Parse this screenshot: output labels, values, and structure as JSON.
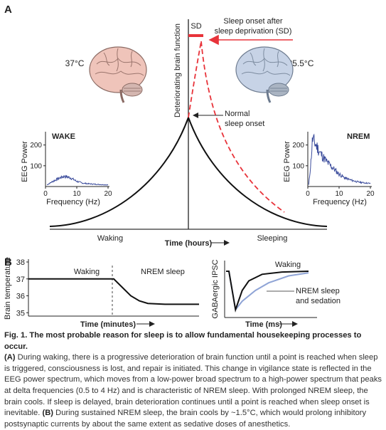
{
  "panel_a": {
    "label": "A",
    "y_axis_label": "Deteriorating brain function",
    "x_axis_label": "Time (hours)",
    "left_label": "Waking",
    "right_label": "Sleeping",
    "sd_tag": "SD",
    "sd_annotation": [
      "Sleep onset after",
      "sleep deprivation (SD)"
    ],
    "normal_annotation": [
      "Normal",
      "sleep onset"
    ],
    "temp_wake": "37°C",
    "temp_sleep": "35.5°C",
    "colors": {
      "curve": "#111111",
      "sd_curve": "#e8333a",
      "eeg_trace": "#3b4c9c",
      "brain_warm": "#efc4ba",
      "brain_cool": "#c7d3e6"
    },
    "icons": [
      "brain-warm-icon",
      "brain-cool-icon"
    ]
  },
  "eeg_wake": {
    "title": "WAKE",
    "ylabel": "EEG Power",
    "xlabel": "Frequency (Hz)",
    "xticks": [
      "0",
      "10",
      "20"
    ],
    "yticks": [
      "100",
      "200"
    ]
  },
  "eeg_nrem": {
    "title": "NREM",
    "ylabel": "EEG Power",
    "xlabel": "Frequency (Hz)",
    "xticks": [
      "0",
      "10",
      "20"
    ],
    "yticks": [
      "100",
      "200"
    ]
  },
  "panel_b": {
    "label": "B",
    "temp_ylabel": "Brain temperature",
    "temp_xlabel": "Time (minutes)",
    "temp_yticks": [
      "35",
      "36",
      "37",
      "38"
    ],
    "temp_waking": "Waking",
    "temp_nrem": "NREM sleep",
    "ipsc_ylabel": "GABAergic IPSC",
    "ipsc_xlabel": "Time (ms)",
    "ipsc_waking": "Waking",
    "ipsc_annotation": [
      "NREM sleep",
      "and sedation"
    ]
  },
  "caption": {
    "title": "Fig. 1. The most probable reason for sleep is to allow fundamental housekeeping processes to occur.",
    "part_a_tag": "(A)",
    "part_a": "During waking, there is a progressive deterioration of brain function until a point is reached when sleep is triggered, consciousness is lost, and repair is initiated. This change in vigilance state is reflected in the EEG power spectrum, which moves from a low-power broad spectrum to a high-power spectrum that peaks at delta frequencies (0.5 to 4 Hz) and is characteristic of NREM sleep. With prolonged NREM sleep, the brain cools. If sleep is delayed, brain deterioration continues until a point is reached when sleep onset is inevitable.",
    "part_b_tag": "(B)",
    "part_b": "During sustained NREM sleep, the brain cools by ~1.5°C, which would prolong inhibitory postsynaptic currents by about the same extent as sedative doses of anesthetics."
  },
  "chart_data": [
    {
      "type": "line",
      "title": "",
      "xlabel": "Time (hours)",
      "ylabel": "Deteriorating brain function",
      "series": [
        {
          "name": "",
          "x": [
            -1.0,
            -0.6,
            -0.3,
            -0.1,
            0.0,
            0.1,
            0.3,
            0.6,
            1.0
          ],
          "y": [
            0.05,
            0.12,
            0.25,
            0.45,
            0.6,
            0.45,
            0.25,
            0.12,
            0.05
          ]
        },
        {
          "name": "",
          "x": [
            0.08,
            0.15,
            0.3,
            0.5,
            0.75,
            1.0
          ],
          "y": [
            1.0,
            0.75,
            0.45,
            0.28,
            0.18,
            0.12
          ]
        }
      ]
    },
    {
      "type": "line",
      "title": "WAKE",
      "xlabel": "Frequency (Hz)",
      "ylabel": "EEG Power",
      "xlim": [
        0,
        20
      ],
      "ylim": [
        0,
        240
      ],
      "series": [
        {
          "name": "",
          "x": [
            0.5,
            2,
            4,
            6,
            8,
            10,
            12,
            14,
            16,
            18,
            20
          ],
          "y": [
            8,
            22,
            38,
            50,
            42,
            25,
            16,
            13,
            11,
            9,
            8
          ]
        }
      ]
    },
    {
      "type": "line",
      "title": "NREM",
      "xlabel": "Frequency (Hz)",
      "ylabel": "EEG Power",
      "xlim": [
        0,
        20
      ],
      "ylim": [
        0,
        240
      ],
      "series": [
        {
          "name": "",
          "x": [
            0.3,
            1,
            1.5,
            2,
            3,
            4,
            6,
            8,
            10,
            12,
            14,
            16,
            18,
            20
          ],
          "y": [
            8,
            120,
            230,
            215,
            190,
            160,
            120,
            90,
            60,
            40,
            30,
            22,
            18,
            15
          ]
        }
      ]
    },
    {
      "type": "line",
      "title": "",
      "xlabel": "Time (minutes)",
      "ylabel": "Brain temperature",
      "ylim": [
        35,
        38
      ],
      "series": [
        {
          "name": "",
          "x": [
            0,
            5,
            10,
            11,
            12,
            13,
            14,
            16,
            20
          ],
          "y": [
            37,
            37,
            37,
            36.5,
            36.0,
            35.7,
            35.55,
            35.5,
            35.5
          ]
        }
      ]
    },
    {
      "type": "line",
      "title": "",
      "xlabel": "Time (ms)",
      "ylabel": "GABAergic IPSC",
      "series": [
        {
          "name": "Waking",
          "x": [
            0,
            1,
            2,
            3,
            5,
            8,
            12
          ],
          "y": [
            0,
            -1,
            -0.5,
            -0.25,
            -0.08,
            -0.02,
            0
          ]
        },
        {
          "name": "NREM sleep and sedation",
          "x": [
            0,
            1,
            2,
            4,
            6,
            9,
            12
          ],
          "y": [
            0,
            -1,
            -0.78,
            -0.5,
            -0.3,
            -0.12,
            -0.04
          ]
        }
      ]
    }
  ]
}
